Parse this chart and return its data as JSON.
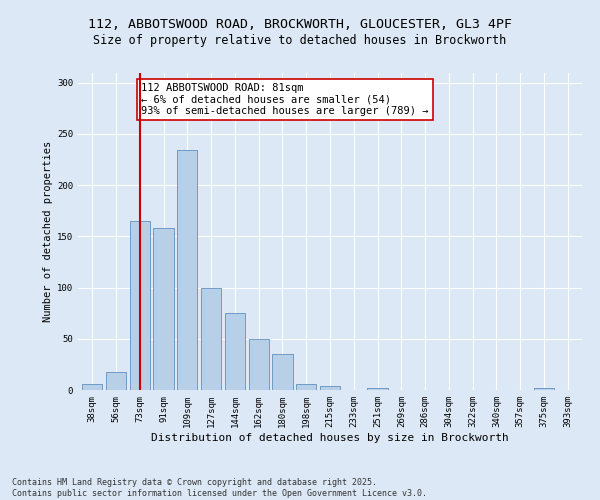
{
  "title_line1": "112, ABBOTSWOOD ROAD, BROCKWORTH, GLOUCESTER, GL3 4PF",
  "title_line2": "Size of property relative to detached houses in Brockworth",
  "xlabel": "Distribution of detached houses by size in Brockworth",
  "ylabel": "Number of detached properties",
  "categories": [
    "38sqm",
    "56sqm",
    "73sqm",
    "91sqm",
    "109sqm",
    "127sqm",
    "144sqm",
    "162sqm",
    "180sqm",
    "198sqm",
    "215sqm",
    "233sqm",
    "251sqm",
    "269sqm",
    "286sqm",
    "304sqm",
    "322sqm",
    "340sqm",
    "357sqm",
    "375sqm",
    "393sqm"
  ],
  "values": [
    6,
    18,
    165,
    158,
    234,
    100,
    75,
    50,
    35,
    6,
    4,
    0,
    2,
    0,
    0,
    0,
    0,
    0,
    0,
    2,
    0
  ],
  "bar_color": "#b8cfe8",
  "bar_edge_color": "#6090c0",
  "vline_x": 2,
  "vline_color": "#cc0000",
  "annotation_text": "112 ABBOTSWOOD ROAD: 81sqm\n← 6% of detached houses are smaller (54)\n93% of semi-detached houses are larger (789) →",
  "annotation_box_edgecolor": "#cc0000",
  "annotation_box_facecolor": "#ffffff",
  "ylim": [
    0,
    310
  ],
  "yticks": [
    0,
    50,
    100,
    150,
    200,
    250,
    300
  ],
  "background_color": "#dce8f5",
  "plot_bg_color": "#dce8f5",
  "footer_text": "Contains HM Land Registry data © Crown copyright and database right 2025.\nContains public sector information licensed under the Open Government Licence v3.0.",
  "title_fontsize": 9.5,
  "subtitle_fontsize": 8.5,
  "axis_label_fontsize": 7.5,
  "tick_fontsize": 6.5,
  "annotation_fontsize": 7.5,
  "footer_fontsize": 6.0
}
